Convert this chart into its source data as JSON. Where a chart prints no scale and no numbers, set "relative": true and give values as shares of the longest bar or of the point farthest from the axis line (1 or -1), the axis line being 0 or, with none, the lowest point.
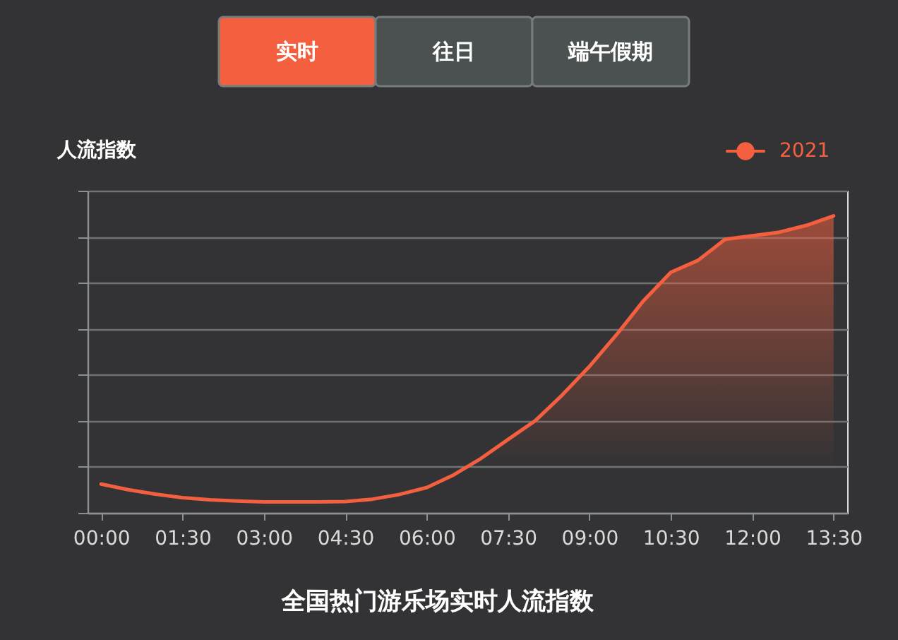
{
  "chart_data": {
    "type": "area",
    "title": "全国热门游乐场实时人流指数",
    "ylabel": "人流指数",
    "annotations": [
      "实时",
      "往日",
      "端午假期"
    ],
    "relative": true,
    "x": [
      0,
      0.5,
      1,
      1.5,
      2,
      2.5,
      3,
      3.5,
      4,
      4.5,
      5,
      5.5,
      6,
      6.5,
      7,
      7.5,
      8,
      8.5,
      9,
      9.5,
      10,
      10.5,
      11,
      11.5,
      12,
      12.5,
      13,
      13.5
    ],
    "xlim": [
      -0.25,
      13.75
    ],
    "xticks": [
      {
        "value": 0,
        "label": "00:00"
      },
      {
        "value": 1.5,
        "label": "01:30"
      },
      {
        "value": 3,
        "label": "03:00"
      },
      {
        "value": 4.5,
        "label": "04:30"
      },
      {
        "value": 6,
        "label": "06:00"
      },
      {
        "value": 7.5,
        "label": "07:30"
      },
      {
        "value": 9,
        "label": "09:00"
      },
      {
        "value": 10.5,
        "label": "10:30"
      },
      {
        "value": 12,
        "label": "12:00"
      },
      {
        "value": 13.5,
        "label": "13:30"
      }
    ],
    "series": [
      {
        "name": "2021",
        "color": "#f4603f",
        "values": [
          0.097,
          0.078,
          0.063,
          0.051,
          0.044,
          0.04,
          0.037,
          0.037,
          0.037,
          0.038,
          0.046,
          0.062,
          0.085,
          0.128,
          0.183,
          0.247,
          0.31,
          0.397,
          0.493,
          0.6,
          0.715,
          0.81,
          0.85,
          0.921,
          0.933,
          0.945,
          0.968,
          1.0
        ]
      }
    ],
    "grid": "y",
    "legend": "top right"
  }
}
